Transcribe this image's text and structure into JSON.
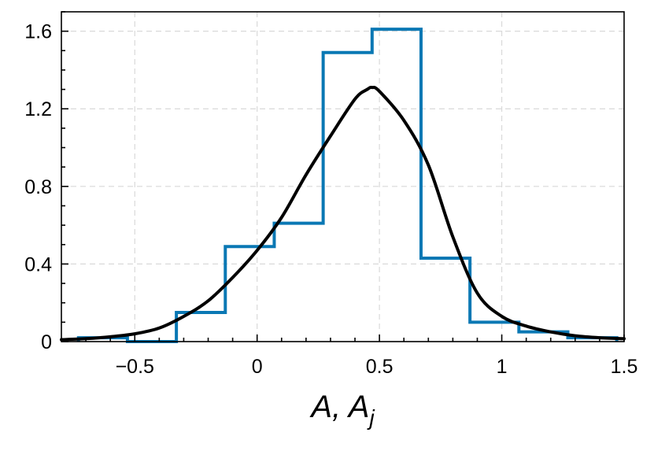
{
  "chart_data": {
    "type": "histogram",
    "xlabel_main": "A, A",
    "xlabel_sub": "j",
    "xlim": [
      -0.8,
      1.5
    ],
    "ylim": [
      0,
      1.7
    ],
    "grid": true,
    "x_ticks": [
      -0.5,
      0,
      0.5,
      1,
      1.5
    ],
    "x_tick_labels": [
      "−0.5",
      "0",
      "0.5",
      "1",
      "1.5"
    ],
    "y_ticks": [
      0,
      0.4,
      0.8,
      1.2,
      1.6
    ],
    "y_tick_labels": [
      "0",
      "0.4",
      "0.8",
      "1.2",
      "1.6"
    ],
    "histogram": {
      "color": "#0a78b4",
      "bin_edges": [
        -0.73,
        -0.53,
        -0.33,
        -0.13,
        0.07,
        0.27,
        0.47,
        0.67,
        0.87,
        1.07,
        1.27,
        1.47
      ],
      "values": [
        0.02,
        0.0,
        0.15,
        0.49,
        0.61,
        1.49,
        1.61,
        0.43,
        0.1,
        0.05,
        0.02
      ]
    },
    "curve": {
      "color": "#000000",
      "x": [
        -0.8,
        -0.7,
        -0.6,
        -0.5,
        -0.4,
        -0.3,
        -0.2,
        -0.1,
        0.0,
        0.1,
        0.2,
        0.3,
        0.4,
        0.45,
        0.47,
        0.5,
        0.6,
        0.7,
        0.8,
        0.9,
        1.0,
        1.1,
        1.2,
        1.3,
        1.4,
        1.5
      ],
      "y": [
        0.01,
        0.015,
        0.025,
        0.04,
        0.07,
        0.13,
        0.21,
        0.33,
        0.47,
        0.64,
        0.86,
        1.06,
        1.25,
        1.3,
        1.31,
        1.29,
        1.14,
        0.91,
        0.54,
        0.25,
        0.13,
        0.08,
        0.05,
        0.03,
        0.02,
        0.015
      ]
    }
  }
}
